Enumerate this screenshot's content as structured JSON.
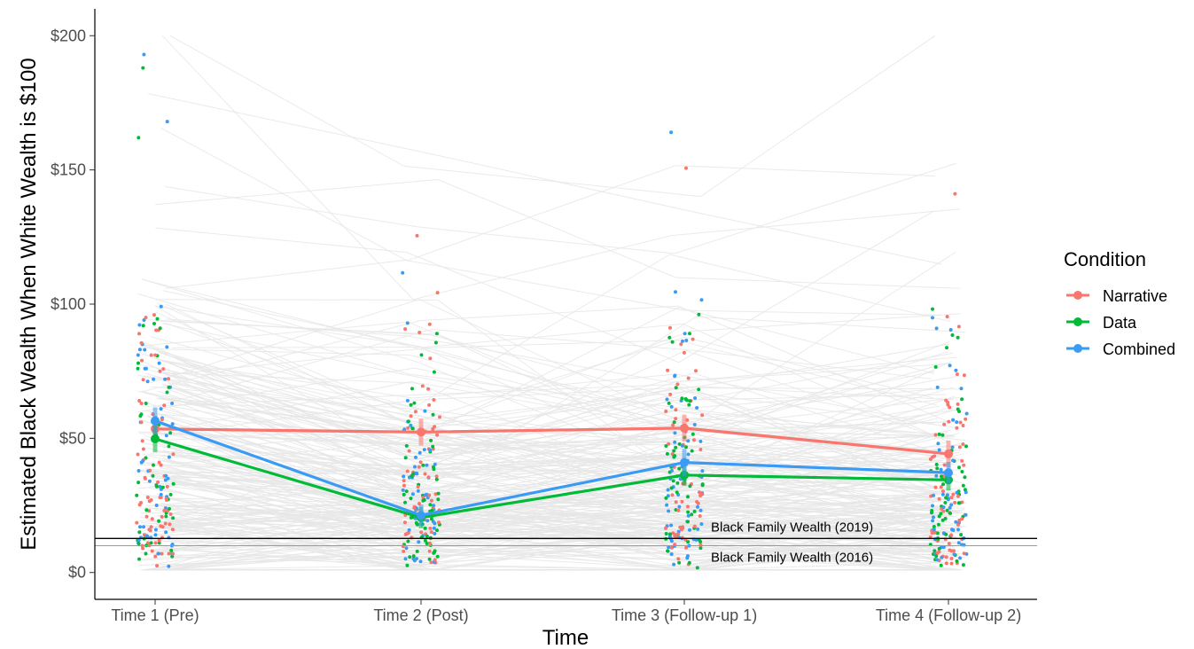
{
  "chart_data": {
    "type": "line",
    "title": "",
    "xlabel": "Time",
    "ylabel": "Estimated Black Wealth When White Wealth is $100",
    "categories": [
      "Time 1 (Pre)",
      "Time 2 (Post)",
      "Time 3 (Follow-up 1)",
      "Time 4 (Follow-up 2)"
    ],
    "ylim": [
      -10,
      210
    ],
    "y_ticks": [
      0,
      50,
      100,
      150,
      200
    ],
    "y_tick_labels": [
      "$0",
      "$50",
      "$100",
      "$150",
      "$200"
    ],
    "grid": false,
    "legend": {
      "title": "Condition",
      "position": "right"
    },
    "series": [
      {
        "name": "Narrative",
        "color": "#F8766D",
        "values": [
          53.5,
          52.3,
          53.8,
          44.2
        ],
        "ci": [
          5,
          5,
          5,
          5
        ]
      },
      {
        "name": "Data",
        "color": "#00BA38",
        "values": [
          49.8,
          20.5,
          36.3,
          34.5
        ],
        "ci": [
          5,
          4,
          4,
          4
        ]
      },
      {
        "name": "Combined",
        "color": "#3A9BF5",
        "values": [
          56.5,
          21.3,
          41.0,
          37.2
        ],
        "ci": [
          5,
          4,
          5,
          4
        ]
      }
    ],
    "reference_lines": [
      {
        "label": "Black Family Wealth (2019)",
        "y": 12.7,
        "color": "#000000"
      },
      {
        "label": "Black Family Wealth (2016)",
        "y": 10.0,
        "color": "#999999"
      }
    ],
    "individual_points": "jittered individual responses per condition at each time point, connected by faint grey lines"
  }
}
